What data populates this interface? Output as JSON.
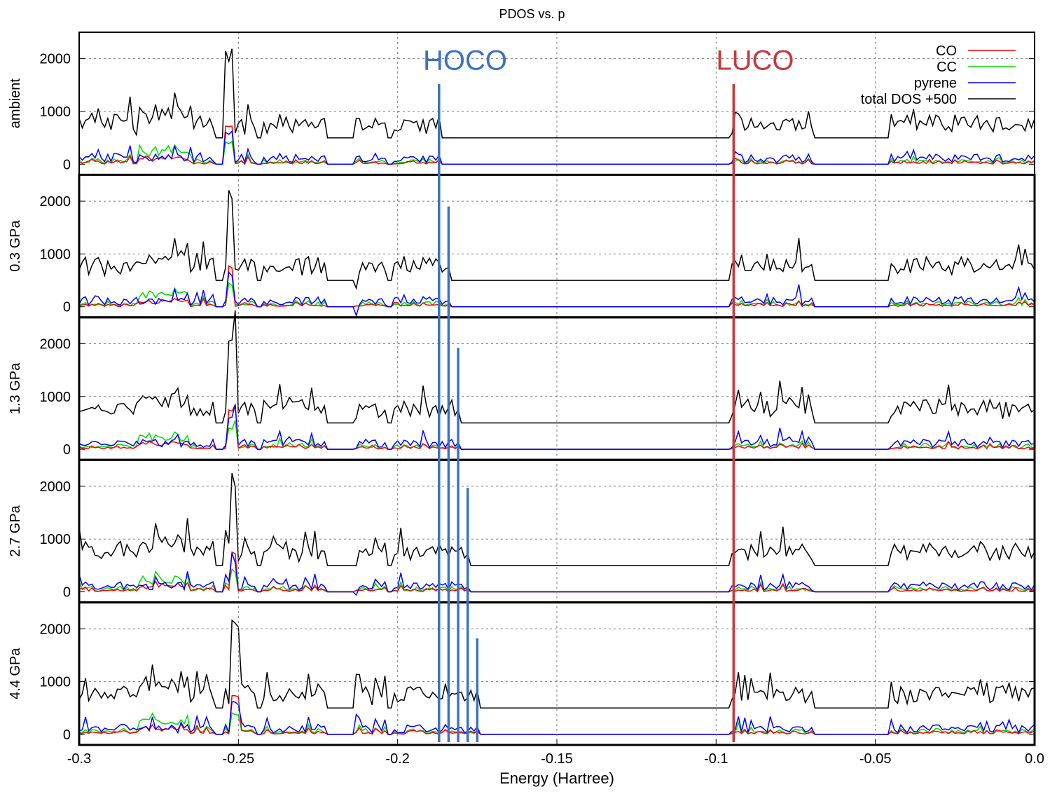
{
  "chart_data": {
    "type": "line",
    "title": "PDOS vs. p",
    "xlabel": "Energy (Hartree)",
    "xlim": [
      -0.3,
      0.0
    ],
    "x_ticks": [
      "-0.3",
      "-0.25",
      "-0.2",
      "-0.15",
      "-0.1",
      "-0.05",
      "0.0"
    ],
    "ylim": [
      -200,
      2500
    ],
    "y_ticks": [
      "0",
      "1000",
      "2000"
    ],
    "grid": true,
    "legend_position": "top-right",
    "series": [
      {
        "name": "CO",
        "color": "#ff0000"
      },
      {
        "name": "CC",
        "color": "#00dd00"
      },
      {
        "name": "pyrene",
        "color": "#0000ff"
      },
      {
        "name": "total DOS +500",
        "color": "#000000",
        "offset": 500
      }
    ],
    "panels": [
      {
        "label": "ambient",
        "homo": -0.187,
        "homo_top": 1520
      },
      {
        "label": "0.3 GPa",
        "homo": -0.184,
        "homo_top": 1900
      },
      {
        "label": "1.3 GPa",
        "homo": -0.181,
        "homo_top": 1920
      },
      {
        "label": "2.7 GPa",
        "homo": -0.178,
        "homo_top": 1970
      },
      {
        "label": "4.4 GPa",
        "homo": -0.175,
        "homo_top": 1820
      }
    ],
    "occupied_region": [
      -0.3,
      -0.187
    ],
    "unoccupied_region": [
      -0.095,
      0.0
    ],
    "annotations": [
      {
        "text": "HOCO",
        "color": "#3a72c4",
        "x": -0.192,
        "y": 2000
      },
      {
        "text": "LUCO",
        "color": "#c8383c",
        "x": -0.1,
        "y": 2000
      }
    ],
    "luco": -0.0945,
    "homo_line_color": "#3a72c4",
    "luco_line_color": "#c8383c"
  }
}
